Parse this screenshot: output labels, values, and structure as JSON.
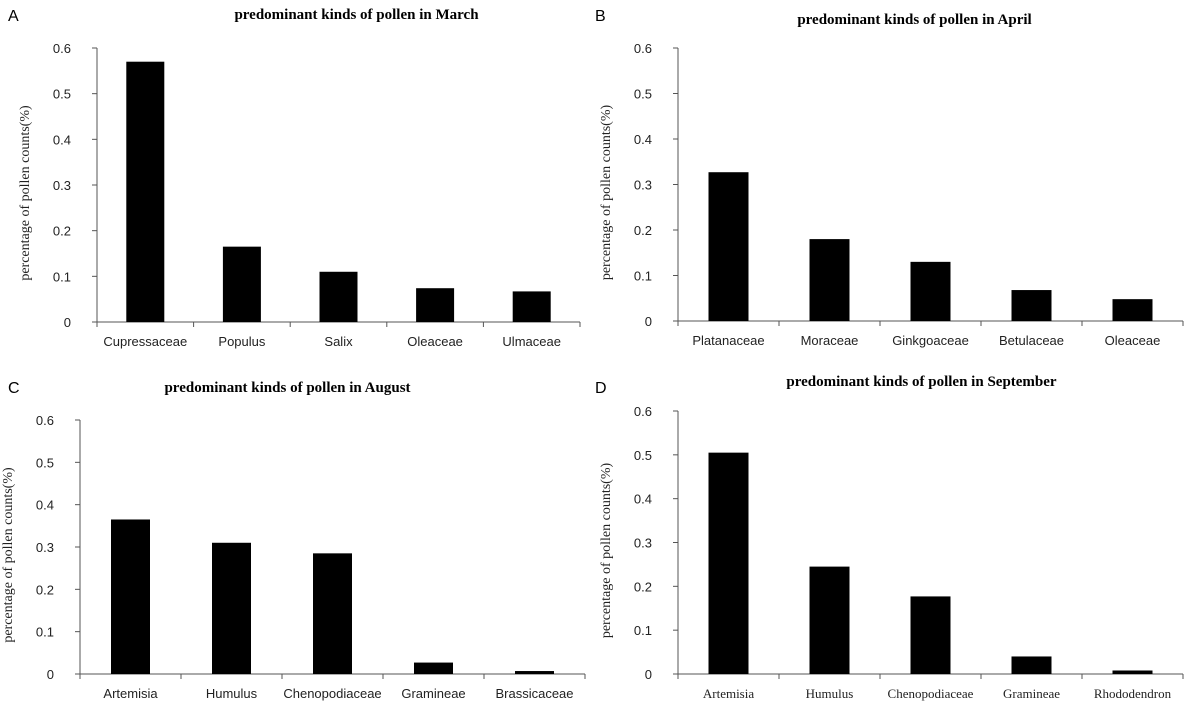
{
  "chart_data": [
    {
      "panel": "A",
      "type": "bar",
      "title": "predominant kinds of pollen in March",
      "xlabel": "",
      "ylabel": "percentage of pollen counts(%)",
      "ylim": [
        0,
        0.6
      ],
      "yticks": [
        "0",
        "0.1",
        "0.2",
        "0.3",
        "0.4",
        "0.5",
        "0.6"
      ],
      "categories": [
        "Cupressaceae",
        "Populus",
        "Salix",
        "Oleaceae",
        "Ulmaceae"
      ],
      "values": [
        0.57,
        0.165,
        0.11,
        0.074,
        0.067
      ],
      "bar_color": "#000000",
      "grid": false
    },
    {
      "panel": "B",
      "type": "bar",
      "title": "predominant kinds of pollen in April",
      "xlabel": "",
      "ylabel": "percentage of pollen counts(%)",
      "ylim": [
        0,
        0.6
      ],
      "yticks": [
        "0",
        "0.1",
        "0.2",
        "0.3",
        "0.4",
        "0.5",
        "0.6"
      ],
      "categories": [
        "Platanaceae",
        "Moraceae",
        "Ginkgoaceae",
        "Betulaceae",
        "Oleaceae"
      ],
      "values": [
        0.327,
        0.18,
        0.13,
        0.068,
        0.048
      ],
      "bar_color": "#000000",
      "grid": false
    },
    {
      "panel": "C",
      "type": "bar",
      "title": "predominant kinds of pollen in August",
      "xlabel": "",
      "ylabel": "percentage of pollen counts(%)",
      "ylim": [
        0,
        0.6
      ],
      "yticks": [
        "0",
        "0.1",
        "0.2",
        "0.3",
        "0.4",
        "0.5",
        "0.6"
      ],
      "categories": [
        "Artemisia",
        "Humulus",
        "Chenopodiaceae",
        "Gramineae",
        "Brassicaceae"
      ],
      "values": [
        0.365,
        0.31,
        0.285,
        0.027,
        0.007
      ],
      "bar_color": "#000000",
      "grid": false
    },
    {
      "panel": "D",
      "type": "bar",
      "title": "predominant kinds of pollen in September",
      "xlabel": "",
      "ylabel": "percentage of pollen counts(%)",
      "ylim": [
        0,
        0.6
      ],
      "yticks": [
        "0",
        "0.1",
        "0.2",
        "0.3",
        "0.4",
        "0.5",
        "0.6"
      ],
      "categories": [
        "Artemisia",
        "Humulus",
        "Chenopodiaceae",
        "Gramineae",
        "Rhododendron"
      ],
      "values": [
        0.505,
        0.245,
        0.177,
        0.04,
        0.008
      ],
      "bar_color": "#000000",
      "grid": false
    }
  ]
}
